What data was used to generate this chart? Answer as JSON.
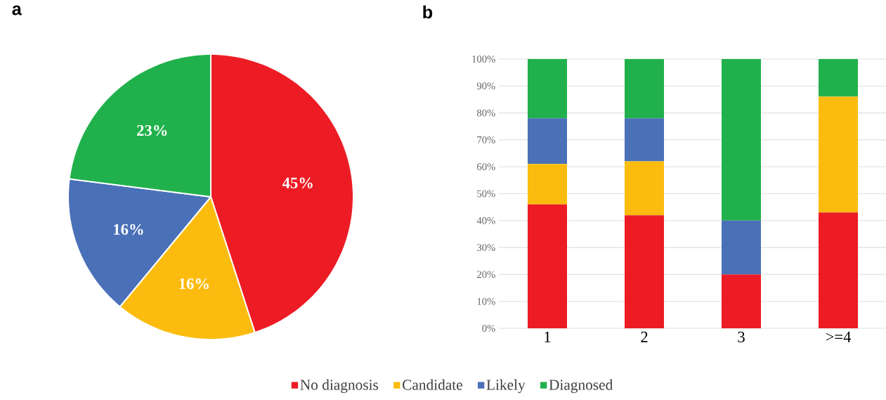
{
  "chart_data": [
    {
      "type": "pie",
      "title": "a",
      "categories": [
        null,
        null,
        null,
        null
      ],
      "values": [
        45,
        16,
        16,
        23
      ],
      "colors": [
        "#ed1c24",
        "#fbbc0f",
        "#4a70b8",
        "#21b14c"
      ],
      "value_labels": [
        "45%",
        "16%",
        "16%",
        "23%"
      ]
    },
    {
      "type": "bar",
      "title": "b",
      "categories": [
        "1",
        "2",
        "3",
        ">=4"
      ],
      "stacked": true,
      "grid": "y",
      "legend": "bottom",
      "ylim": [
        0,
        100
      ],
      "yticks": [
        {
          "value": 0,
          "label": "0%"
        },
        {
          "value": 10,
          "label": "10%"
        },
        {
          "value": 20,
          "label": "20%"
        },
        {
          "value": 30,
          "label": "30%"
        },
        {
          "value": 40,
          "label": "40%"
        },
        {
          "value": 50,
          "label": "50%"
        },
        {
          "value": 60,
          "label": "60%"
        },
        {
          "value": 70,
          "label": "70%"
        },
        {
          "value": 80,
          "label": "80%"
        },
        {
          "value": 90,
          "label": "90%"
        },
        {
          "value": 100,
          "label": "100%"
        }
      ],
      "series": [
        {
          "name": "No diagnosis",
          "color": "#ed1c24",
          "values": [
            46,
            42,
            20,
            43
          ]
        },
        {
          "name": "Candidate",
          "color": "#fbbc0f",
          "values": [
            15,
            20,
            0,
            43
          ]
        },
        {
          "name": "Likely",
          "color": "#4a70b8",
          "values": [
            17,
            16,
            20,
            0
          ]
        },
        {
          "name": "Diagnosed",
          "color": "#21b14c",
          "values": [
            22,
            22,
            60,
            14
          ]
        }
      ]
    }
  ]
}
